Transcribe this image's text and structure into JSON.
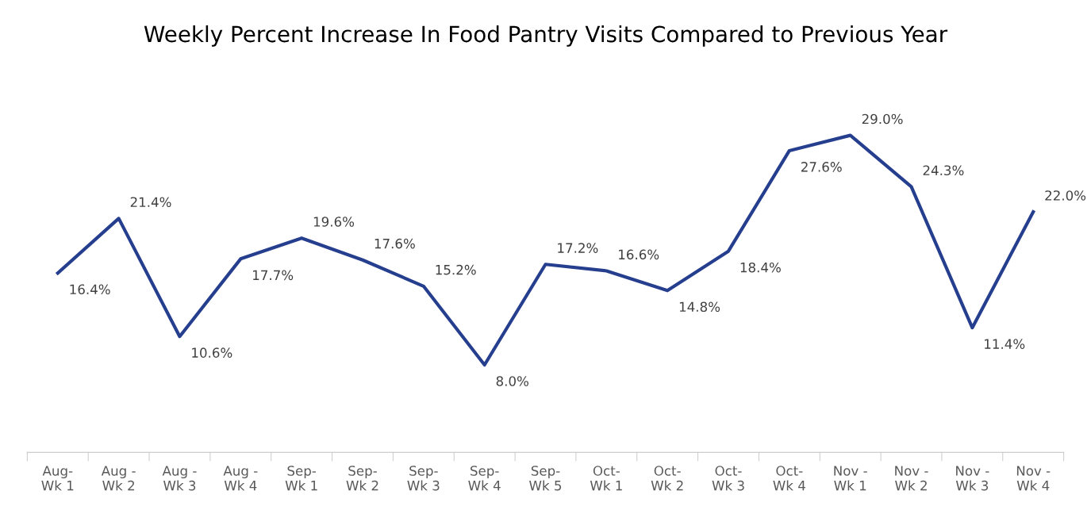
{
  "chart_data": {
    "type": "line",
    "title": "Weekly Percent Increase In Food Pantry Visits Compared to Previous Year",
    "categories": [
      "Aug- Wk 1",
      "Aug - Wk 2",
      "Aug - Wk 3",
      "Aug - Wk 4",
      "Sep- Wk 1",
      "Sep- Wk 2",
      "Sep- Wk 3",
      "Sep- Wk 4",
      "Sep- Wk 5",
      "Oct- Wk 1",
      "Oct- Wk 2",
      "Oct- Wk 3",
      "Oct- Wk 4",
      "Nov - Wk 1",
      "Nov - Wk 2",
      "Nov - Wk 3",
      "Nov - Wk 4"
    ],
    "series": [
      {
        "color": "#253f8e",
        "values": [
          16.4,
          21.4,
          10.6,
          17.7,
          19.6,
          17.6,
          15.2,
          8.0,
          17.2,
          16.6,
          14.8,
          18.4,
          27.6,
          29.0,
          24.3,
          11.4,
          22.0
        ],
        "value_labels": [
          "16.4%",
          "21.4%",
          "10.6%",
          "17.7%",
          "19.6%",
          "17.6%",
          "15.2%",
          "8.0%",
          "17.2%",
          "16.6%",
          "14.8%",
          "18.4%",
          "27.6%",
          "29.0%",
          "24.3%",
          "11.4%",
          "22.0%"
        ]
      }
    ],
    "tick_labels": "x",
    "grid": false,
    "legend": false,
    "marker": "none",
    "line_style": "solid"
  }
}
